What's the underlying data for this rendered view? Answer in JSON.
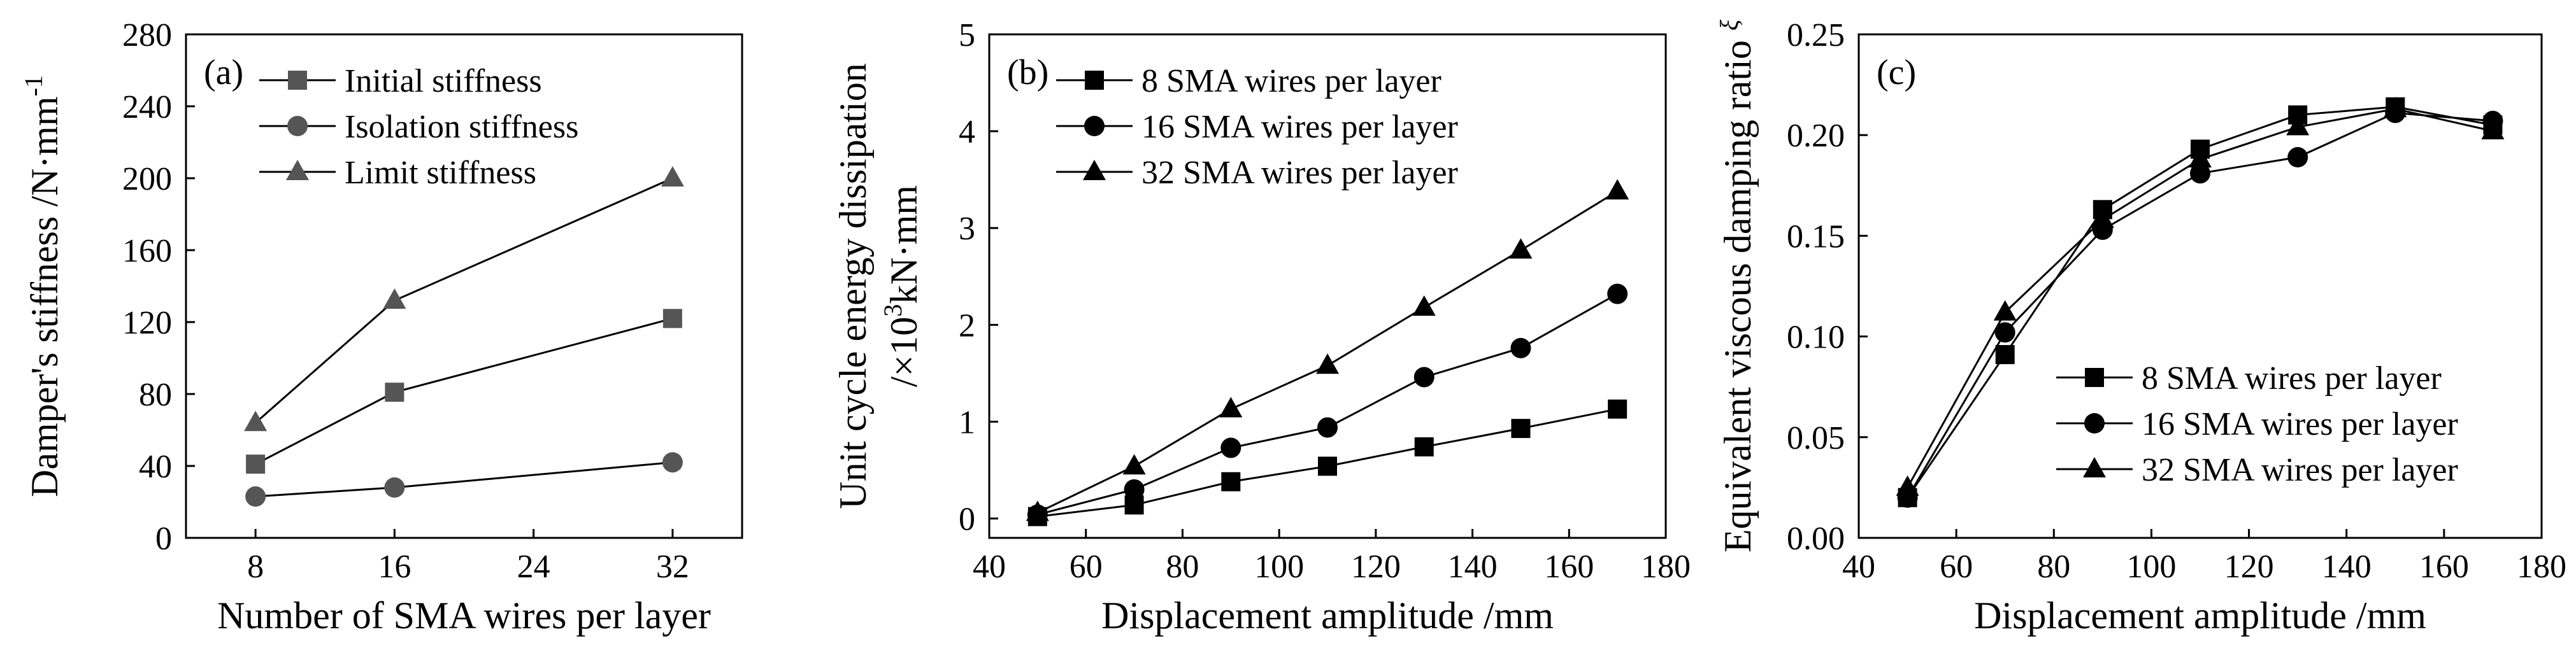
{
  "chart_data": [
    {
      "type": "line",
      "panel_label": "(a)",
      "xlabel": "Number of SMA wires per layer",
      "ylabel": "Damper's stiffness /N·mm",
      "ylabel_sup": "-1",
      "x": [
        8,
        16,
        32
      ],
      "xlim": [
        4,
        36
      ],
      "ylim": [
        0,
        280
      ],
      "xticks": [
        8,
        16,
        24,
        32
      ],
      "yticks": [
        0,
        40,
        80,
        120,
        160,
        200,
        240,
        280
      ],
      "legend_position": "top-left",
      "series": [
        {
          "name": "Initial stiffness",
          "marker": "square",
          "color": "#555555",
          "values": [
            41,
            81,
            122
          ]
        },
        {
          "name": "Isolation stiffness",
          "marker": "circle",
          "color": "#555555",
          "values": [
            23,
            28,
            42
          ]
        },
        {
          "name": "Limit stiffness",
          "marker": "triangle",
          "color": "#555555",
          "values": [
            64,
            132,
            200
          ]
        }
      ]
    },
    {
      "type": "line",
      "panel_label": "(b)",
      "xlabel": "Displacement amplitude /mm",
      "ylabel_line1": "Unit cycle energy dissipation",
      "ylabel_line2_pre": "/×10",
      "ylabel_line2_sup": "3",
      "ylabel_line2_post": "kN·mm",
      "x": [
        50,
        70,
        90,
        110,
        130,
        150,
        170
      ],
      "xlim": [
        40,
        180
      ],
      "ylim": [
        -0.2,
        5
      ],
      "xticks": [
        40,
        60,
        80,
        100,
        120,
        140,
        160,
        180
      ],
      "yticks": [
        0,
        1,
        2,
        3,
        4,
        5
      ],
      "legend_position": "top-left",
      "series": [
        {
          "name": "8 SMA wires per layer",
          "marker": "square",
          "color": "#000000",
          "values": [
            0.02,
            0.14,
            0.38,
            0.54,
            0.74,
            0.93,
            1.13
          ]
        },
        {
          "name": "16 SMA wires per layer",
          "marker": "circle",
          "color": "#000000",
          "values": [
            0.04,
            0.3,
            0.73,
            0.94,
            1.46,
            1.76,
            2.32
          ]
        },
        {
          "name": "32 SMA wires per layer",
          "marker": "triangle",
          "color": "#000000",
          "values": [
            0.06,
            0.54,
            1.13,
            1.58,
            2.18,
            2.77,
            3.38
          ]
        }
      ]
    },
    {
      "type": "line",
      "panel_label": "(c)",
      "xlabel": "Displacement amplitude /mm",
      "ylabel": "Equivalent viscous damping ratio ",
      "ylabel_symbol": "ξ",
      "x": [
        50,
        70,
        90,
        110,
        130,
        150,
        170
      ],
      "xlim": [
        40,
        180
      ],
      "ylim": [
        0,
        0.25
      ],
      "xticks": [
        40,
        60,
        80,
        100,
        120,
        140,
        160,
        180
      ],
      "yticks": [
        "0.00",
        "0.05",
        "0.10",
        "0.15",
        "0.20",
        "0.25"
      ],
      "legend_position": "bottom-right",
      "series": [
        {
          "name": "8 SMA wires per layer",
          "marker": "square",
          "color": "#000000",
          "values": [
            0.02,
            0.091,
            0.163,
            0.193,
            0.21,
            0.214,
            0.205
          ]
        },
        {
          "name": "16 SMA wires per layer",
          "marker": "circle",
          "color": "#000000",
          "values": [
            0.02,
            0.102,
            0.153,
            0.181,
            0.189,
            0.211,
            0.207
          ]
        },
        {
          "name": "32 SMA wires per layer",
          "marker": "triangle",
          "color": "#000000",
          "values": [
            0.025,
            0.112,
            0.158,
            0.188,
            0.204,
            0.213,
            0.202
          ]
        }
      ]
    }
  ]
}
